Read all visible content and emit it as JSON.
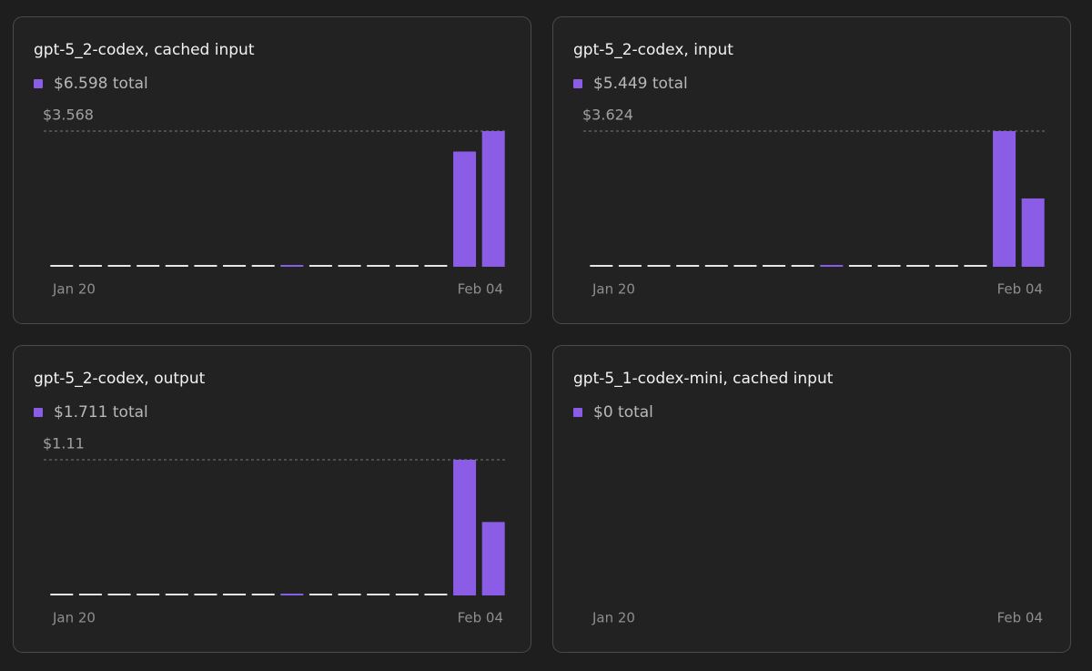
{
  "chart_data": [
    {
      "type": "bar",
      "title": "gpt-5_2-codex, cached input",
      "total_label": "$6.598 total",
      "color": "#8b5ce6",
      "categories": [
        "Jan 20",
        null,
        null,
        null,
        null,
        null,
        null,
        null,
        null,
        null,
        null,
        null,
        null,
        null,
        null,
        "Feb 04"
      ],
      "values": [
        null,
        null,
        null,
        null,
        null,
        null,
        null,
        null,
        0,
        null,
        null,
        null,
        null,
        null,
        3.03,
        3.568
      ],
      "ylim": [
        0,
        3.568
      ],
      "yticks": [
        {
          "value": 3.568,
          "label": "$3.568"
        }
      ]
    },
    {
      "type": "bar",
      "title": "gpt-5_2-codex, input",
      "total_label": "$5.449 total",
      "color": "#8b5ce6",
      "categories": [
        "Jan 20",
        null,
        null,
        null,
        null,
        null,
        null,
        null,
        null,
        null,
        null,
        null,
        null,
        null,
        null,
        "Feb 04"
      ],
      "values": [
        null,
        null,
        null,
        null,
        null,
        null,
        null,
        null,
        0,
        null,
        null,
        null,
        null,
        null,
        3.624,
        1.825
      ],
      "ylim": [
        0,
        3.624
      ],
      "yticks": [
        {
          "value": 3.624,
          "label": "$3.624"
        }
      ]
    },
    {
      "type": "bar",
      "title": "gpt-5_2-codex, output",
      "total_label": "$1.711 total",
      "color": "#8b5ce6",
      "categories": [
        "Jan 20",
        null,
        null,
        null,
        null,
        null,
        null,
        null,
        null,
        null,
        null,
        null,
        null,
        null,
        null,
        "Feb 04"
      ],
      "values": [
        null,
        null,
        null,
        null,
        null,
        null,
        null,
        null,
        0,
        null,
        null,
        null,
        null,
        null,
        1.11,
        0.601
      ],
      "ylim": [
        0,
        1.11
      ],
      "yticks": [
        {
          "value": 1.11,
          "label": "$1.11"
        }
      ]
    },
    {
      "type": "bar",
      "title": "gpt-5_1-codex-mini, cached input",
      "total_label": "$0 total",
      "color": "#8b5ce6",
      "categories": [
        "Jan 20",
        null,
        null,
        null,
        null,
        null,
        null,
        null,
        null,
        null,
        null,
        null,
        null,
        null,
        null,
        "Feb 04"
      ]
    }
  ]
}
